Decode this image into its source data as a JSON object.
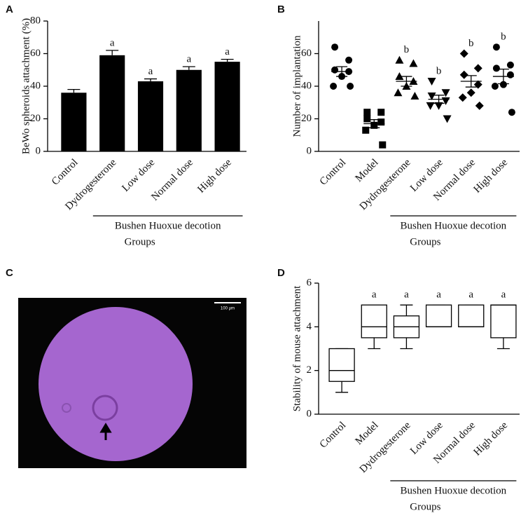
{
  "panels": [
    "A",
    "B",
    "C",
    "D"
  ],
  "image": {
    "scale_label": "100 μm"
  },
  "chart_data": [
    {
      "type": "bar",
      "y_label": "BeWo spheroids attachment (%)",
      "categories": [
        "Control",
        "Dydrogesterone",
        "Low dose",
        "Normal dose",
        "High dose"
      ],
      "values": [
        36,
        59,
        43,
        50,
        55
      ],
      "errors": [
        2,
        3,
        1.5,
        2,
        1.5
      ],
      "annotations": [
        null,
        "a",
        "a",
        "a",
        "a"
      ],
      "color": "#000000",
      "group_label": "Bushen Huoxue decotion",
      "x_label": "Groups",
      "ylim": [
        0,
        80
      ],
      "yticks": [
        0,
        20,
        40,
        60,
        80
      ]
    },
    {
      "type": "scatter",
      "y_label": "Number of implantation",
      "categories": [
        "Control",
        "Model",
        "Dydrogesterone",
        "Low dose",
        "Normal dose",
        "High dose"
      ],
      "values": [
        [
          64,
          56,
          50,
          49,
          46,
          40,
          40
        ],
        [
          24,
          24,
          20,
          18,
          16,
          13,
          4
        ],
        [
          56,
          54,
          46,
          43,
          40,
          36,
          34
        ],
        [
          43,
          36,
          34,
          31,
          28,
          28,
          20
        ],
        [
          60,
          51,
          47,
          41,
          36,
          33,
          28
        ],
        [
          64,
          53,
          51,
          47,
          41,
          40,
          24
        ]
      ],
      "means": [
        49,
        17,
        43,
        32,
        43,
        46
      ],
      "sem": [
        3,
        2.5,
        3,
        2.5,
        3.5,
        4.5
      ],
      "markers": [
        "circle",
        "square",
        "triangle-up",
        "triangle-down",
        "diamond",
        "circle"
      ],
      "annotations": [
        null,
        null,
        "b",
        "b",
        "b",
        "b"
      ],
      "color": "#000000",
      "group_label": "Bushen Huoxue decotion",
      "x_label": "Groups",
      "ylim": [
        0,
        80
      ],
      "yticks": [
        0,
        20,
        40,
        60
      ]
    },
    {
      "type": "box",
      "y_label": "Stability of mouse attachment",
      "categories": [
        "Control",
        "Model",
        "Dydrogesterone",
        "Low dose",
        "Normal dose",
        "High dose"
      ],
      "boxes": [
        {
          "min": 1,
          "q1": 1.5,
          "median": 2,
          "q3": 3,
          "max": 3
        },
        {
          "min": 3,
          "q1": 3.5,
          "median": 4,
          "q3": 5,
          "max": 5
        },
        {
          "min": 3,
          "q1": 3.5,
          "median": 4,
          "q3": 4.5,
          "max": 5
        },
        {
          "min": 4,
          "q1": 4,
          "median": 4,
          "q3": 5,
          "max": 5
        },
        {
          "min": 4,
          "q1": 4,
          "median": 4,
          "q3": 5,
          "max": 5
        },
        {
          "min": 3,
          "q1": 3.5,
          "median": 5,
          "q3": 5,
          "max": 5
        }
      ],
      "annotations": [
        null,
        "a",
        "a",
        "a",
        "a",
        "a"
      ],
      "color": "#000000",
      "group_label": "Bushen Huoxue decotion",
      "x_label": "Groups",
      "ylim": [
        0,
        6
      ],
      "yticks": [
        0,
        2,
        4,
        6
      ]
    }
  ]
}
